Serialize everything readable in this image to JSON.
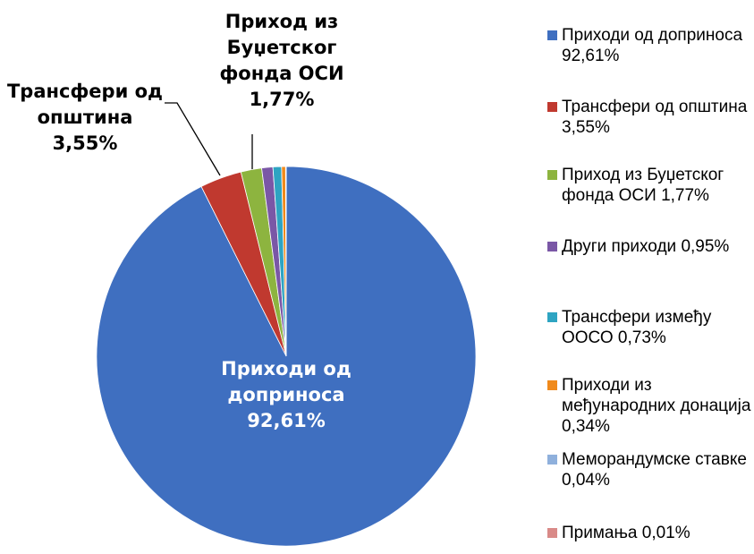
{
  "chart_data": {
    "type": "pie",
    "categories": [
      "Приходи од доприноса",
      "Трансфери од општина",
      "Приход из Буџетског фонда ОСИ",
      "Други приходи",
      "Трансфери између ООСО",
      "Приходи из међународних донација",
      "Меморандумске ставке",
      "Примања"
    ],
    "values": [
      92.61,
      3.55,
      1.77,
      0.95,
      0.73,
      0.34,
      0.04,
      0.01
    ],
    "value_labels": [
      "92,61%",
      "3,55%",
      "1,77%",
      "0,95%",
      "0,73%",
      "0,34%",
      "0,04%",
      "0,01%"
    ],
    "colors": [
      "#3f6fc0",
      "#c0392f",
      "#8db43f",
      "#7a57a6",
      "#2ea4c2",
      "#f08a1c",
      "#8fb0dc",
      "#d98a88"
    ],
    "legend": "right"
  }
}
